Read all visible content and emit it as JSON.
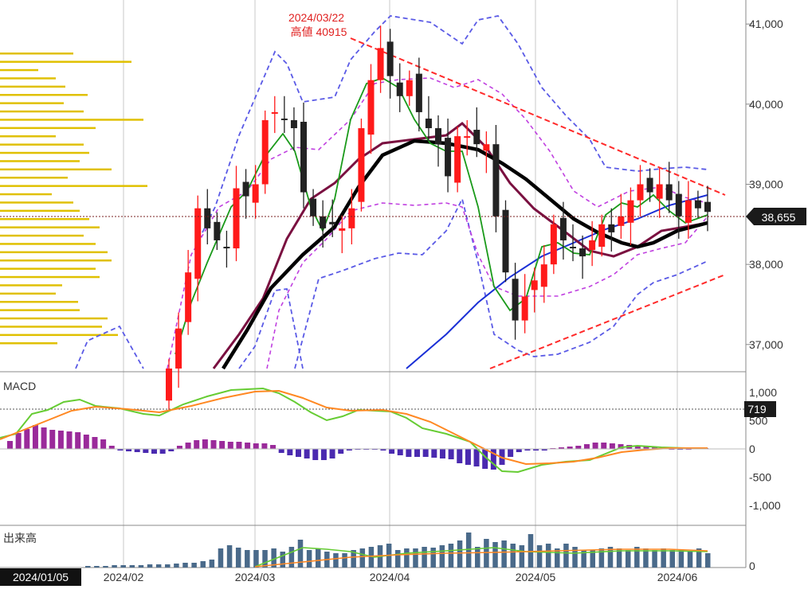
{
  "chart_data": [
    {
      "type": "candlestick",
      "panel": "price",
      "y_ticks": [
        "41,000",
        "40,000",
        "39,000",
        "38,000",
        "37,000"
      ],
      "y_tick_values": [
        41000,
        40000,
        39000,
        38000,
        37000
      ],
      "ylim": [
        36700,
        41300
      ],
      "x_labels": [
        "2024/02",
        "2024/03",
        "2024/04",
        "2024/05",
        "2024/06"
      ],
      "start_date_label": "2024/01/05",
      "current_price_label": "38,655",
      "current_price": 38655,
      "annotation": {
        "date": "2024/03/22",
        "text": "高値 40915",
        "value": 40915
      },
      "trend_upper": [
        [
          40915,
          38950
        ]
      ],
      "trend_lower": [
        [
          36700,
          37900
        ]
      ],
      "colors": {
        "up": "#ff1a1a",
        "down": "#222222",
        "ma_short": "#1a9a1a",
        "ma_mid": "#7a1040",
        "ma_long": "#000000",
        "ma_200": "#1a2fd6",
        "bb_outer": "#5a5ae6",
        "bb_inner": "#c040e0",
        "trend": "#ff2a2a",
        "volume_profile": "#e0c000"
      },
      "close": [
        36700,
        37200,
        37900,
        38700,
        38450,
        38300,
        38200,
        38950,
        38850,
        39000,
        39800,
        39900,
        39800,
        39700,
        38900,
        38600,
        38450,
        38500,
        38450,
        38700,
        39700,
        40300,
        40700,
        40350,
        40100,
        40300,
        39900,
        39700,
        39500,
        39100,
        39600,
        39600,
        39500,
        39500,
        38600,
        37900,
        37300,
        37600,
        37800,
        38000,
        38500,
        38300,
        38200,
        38100,
        38300,
        38500,
        38400,
        38600,
        38800,
        39000,
        38900,
        39000,
        38800,
        38600,
        38800,
        38700,
        38655
      ]
    },
    {
      "type": "line",
      "panel": "macd",
      "title": "MACD",
      "y_ticks": [
        "1,000",
        "500",
        "0",
        "-500",
        "-1,000"
      ],
      "y_tick_values": [
        1000,
        500,
        0,
        -500,
        -1000
      ],
      "current_label": "719",
      "current_value": 719
    },
    {
      "type": "bar",
      "panel": "volume",
      "title": "出来高",
      "y_ticks": [
        "0"
      ]
    }
  ]
}
